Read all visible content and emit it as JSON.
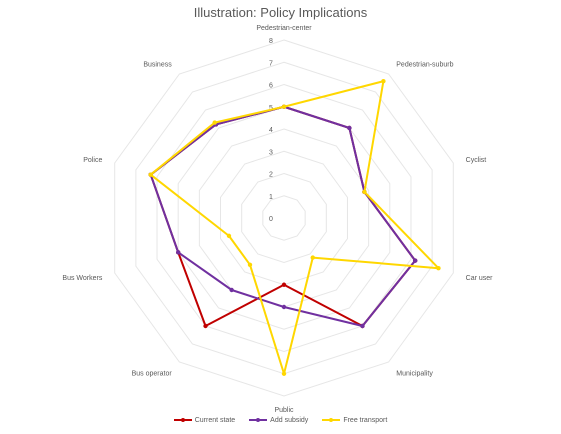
{
  "chart_data": {
    "type": "radar",
    "title": "Illustration: Policy Implications",
    "categories": [
      "Pedestrian-center",
      "Pedestrian-suburb",
      "Cyclist",
      "Car user",
      "Municipality",
      "Public",
      "Bus operator",
      "Bus Workers",
      "Police",
      "Business"
    ],
    "rlim": [
      0,
      8
    ],
    "ticks": [
      "0",
      "1",
      "2",
      "3",
      "4",
      "5",
      "6",
      "7",
      "8"
    ],
    "grid": true,
    "legend_position": "bottom",
    "series": [
      {
        "name": "Current state",
        "color": "#c00000",
        "values": [
          5,
          5,
          3.8,
          6.2,
          6,
          3,
          6,
          5,
          6.3,
          5.2
        ]
      },
      {
        "name": "Add subsidy",
        "color": "#7030a0",
        "values": [
          5,
          5,
          3.8,
          6.2,
          6,
          4,
          4,
          5,
          6.3,
          5.2
        ]
      },
      {
        "name": "Free transport",
        "color": "#ffd700",
        "values": [
          5,
          7.6,
          3.8,
          7.3,
          2.2,
          7,
          2.6,
          2.6,
          6.3,
          5.3
        ]
      }
    ]
  }
}
